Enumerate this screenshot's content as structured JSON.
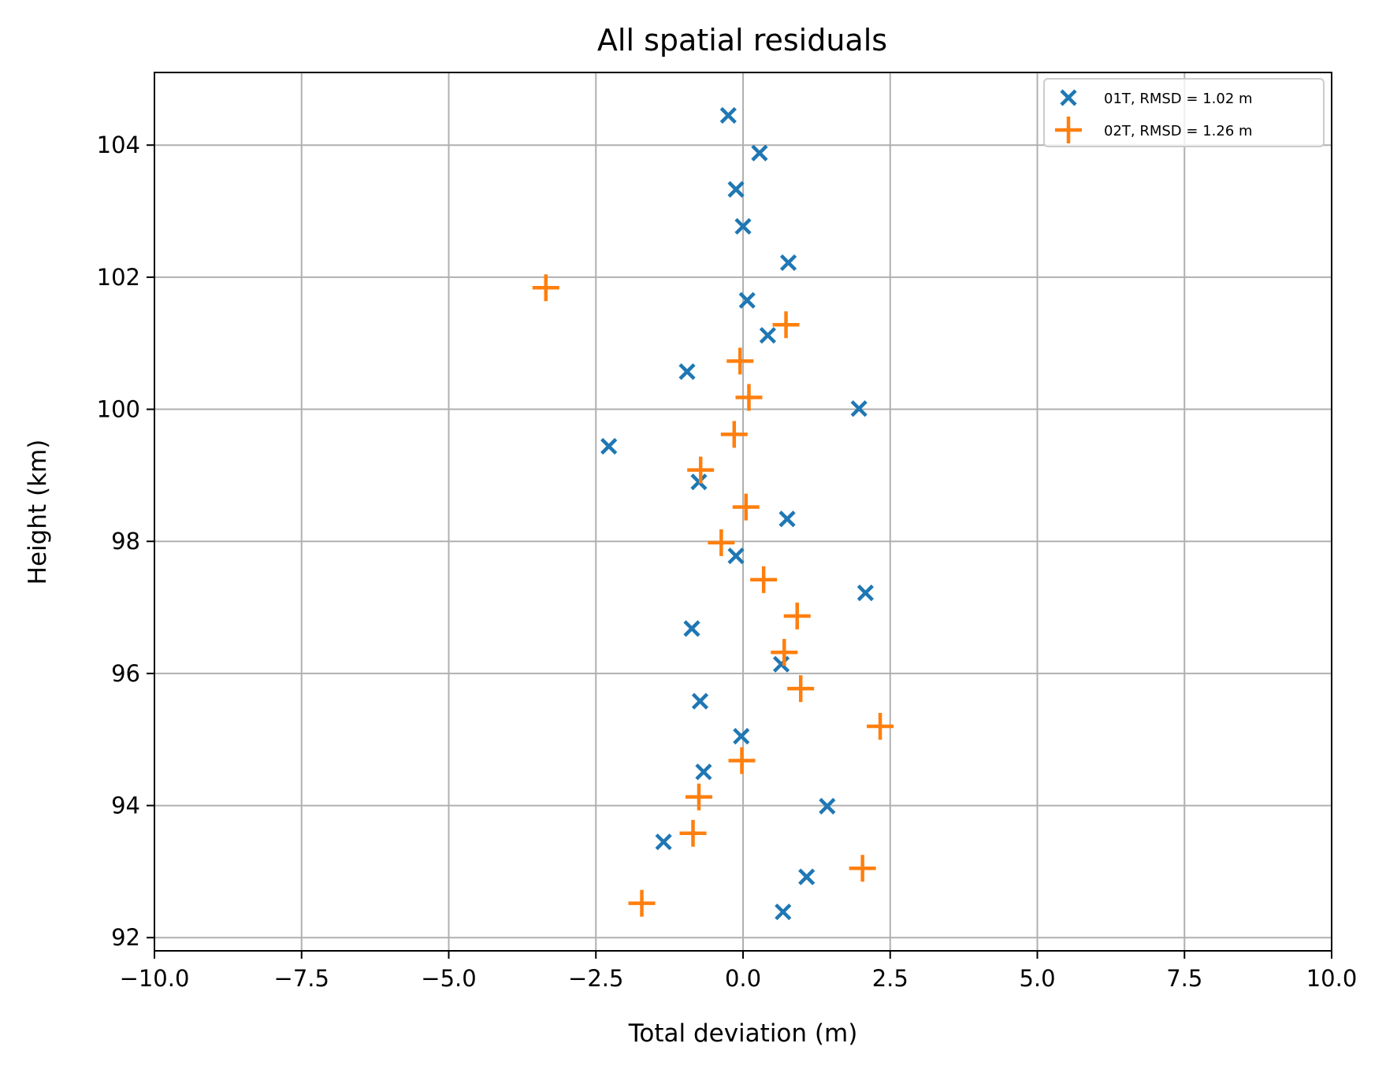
{
  "chart_data": {
    "type": "scatter",
    "title": "All spatial residuals",
    "xlabel": "Total deviation (m)",
    "ylabel": "Height (km)",
    "xlim": [
      -10,
      10
    ],
    "ylim": [
      91.8,
      105.1
    ],
    "grid": true,
    "legend_position": "top-right",
    "x_ticks": [
      -10,
      -7.5,
      -5,
      -2.5,
      0,
      2.5,
      5,
      7.5,
      10
    ],
    "x_tick_labels": [
      "−10.0",
      "−7.5",
      "−5.0",
      "−2.5",
      "0.0",
      "2.5",
      "5.0",
      "7.5",
      "10.0"
    ],
    "y_ticks": [
      92,
      94,
      96,
      98,
      100,
      102,
      104
    ],
    "y_tick_labels": [
      "92",
      "94",
      "96",
      "98",
      "100",
      "102",
      "104"
    ],
    "series": [
      {
        "name": "01T, RMSD = 1.02 m",
        "marker": "x",
        "color": "#1f77b4",
        "points": [
          [
            -0.25,
            104.45
          ],
          [
            0.28,
            103.88
          ],
          [
            -0.12,
            103.33
          ],
          [
            0.0,
            102.77
          ],
          [
            0.77,
            102.22
          ],
          [
            0.07,
            101.65
          ],
          [
            0.42,
            101.12
          ],
          [
            -0.95,
            100.57
          ],
          [
            1.97,
            100.01
          ],
          [
            -2.28,
            99.44
          ],
          [
            -0.75,
            98.9
          ],
          [
            0.75,
            98.34
          ],
          [
            -0.12,
            97.78
          ],
          [
            2.08,
            97.22
          ],
          [
            -0.87,
            96.68
          ],
          [
            0.65,
            96.14
          ],
          [
            -0.73,
            95.58
          ],
          [
            -0.03,
            95.05
          ],
          [
            -0.67,
            94.51
          ],
          [
            1.43,
            93.99
          ],
          [
            -1.35,
            93.45
          ],
          [
            1.08,
            92.92
          ],
          [
            0.68,
            92.39
          ]
        ]
      },
      {
        "name": "02T, RMSD = 1.26 m",
        "marker": "+",
        "color": "#ff7f0e",
        "points": [
          [
            -3.35,
            101.84
          ],
          [
            0.73,
            101.28
          ],
          [
            -0.05,
            100.73
          ],
          [
            0.1,
            100.18
          ],
          [
            -0.15,
            99.62
          ],
          [
            -0.72,
            99.08
          ],
          [
            0.05,
            98.52
          ],
          [
            -0.37,
            97.98
          ],
          [
            0.35,
            97.42
          ],
          [
            0.92,
            96.87
          ],
          [
            0.7,
            96.32
          ],
          [
            0.98,
            95.77
          ],
          [
            2.33,
            95.2
          ],
          [
            -0.02,
            94.68
          ],
          [
            -0.75,
            94.13
          ],
          [
            -0.85,
            93.58
          ],
          [
            2.03,
            93.05
          ],
          [
            -1.72,
            92.52
          ]
        ]
      }
    ]
  }
}
